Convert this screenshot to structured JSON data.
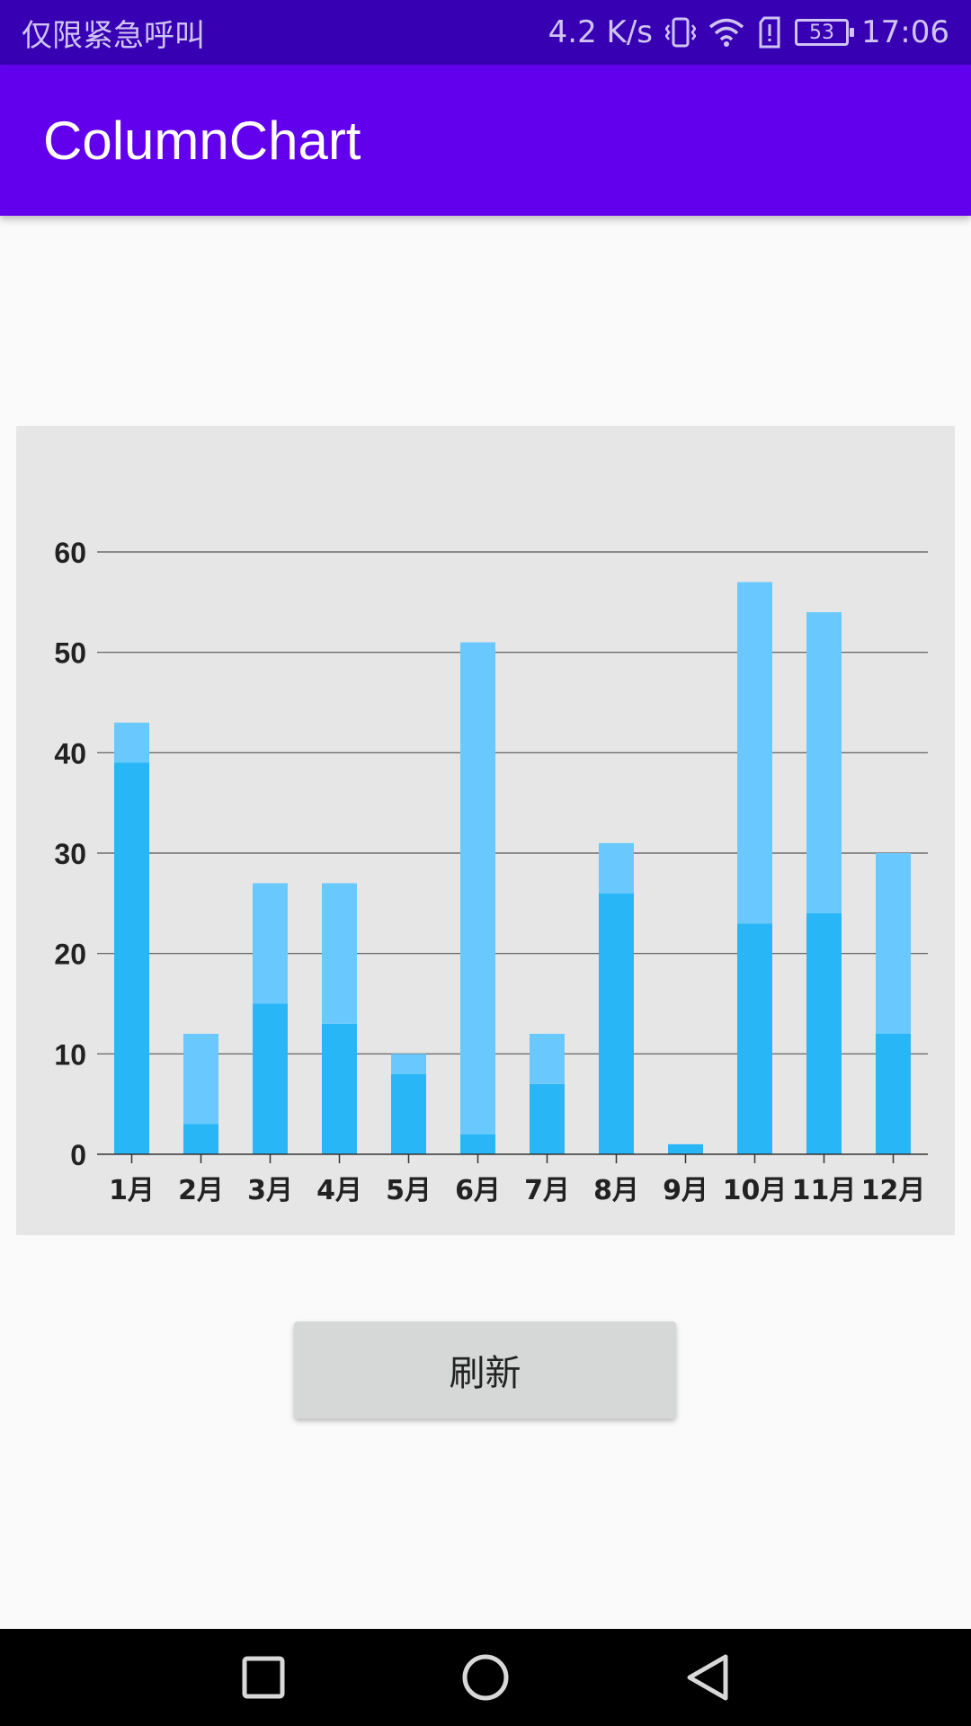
{
  "status_bar": {
    "carrier": "仅限紧急呼叫",
    "speed": "4.2 K/s",
    "battery": "53",
    "time": "17:06"
  },
  "app_bar": {
    "title": "ColumnChart"
  },
  "refresh_label": "刷新",
  "colors": {
    "primary": "#6200ee",
    "primary_dark": "#3700b3",
    "bar_bottom": "#29b6f6",
    "bar_top": "#69c9ff"
  },
  "chart_data": {
    "type": "bar",
    "stacked": true,
    "categories": [
      "1月",
      "2月",
      "3月",
      "4月",
      "5月",
      "6月",
      "7月",
      "8月",
      "9月",
      "10月",
      "11月",
      "12月"
    ],
    "series": [
      {
        "values": [
          39,
          3,
          15,
          13,
          8,
          2,
          7,
          26,
          1,
          23,
          24,
          12
        ]
      },
      {
        "values": [
          4,
          9,
          12,
          14,
          2,
          49,
          5,
          5,
          0,
          34,
          30,
          18
        ]
      }
    ],
    "ylim": [
      0,
      60
    ],
    "yticks": [
      0,
      10,
      20,
      30,
      40,
      50,
      60
    ],
    "grid": true,
    "legend": "none"
  }
}
